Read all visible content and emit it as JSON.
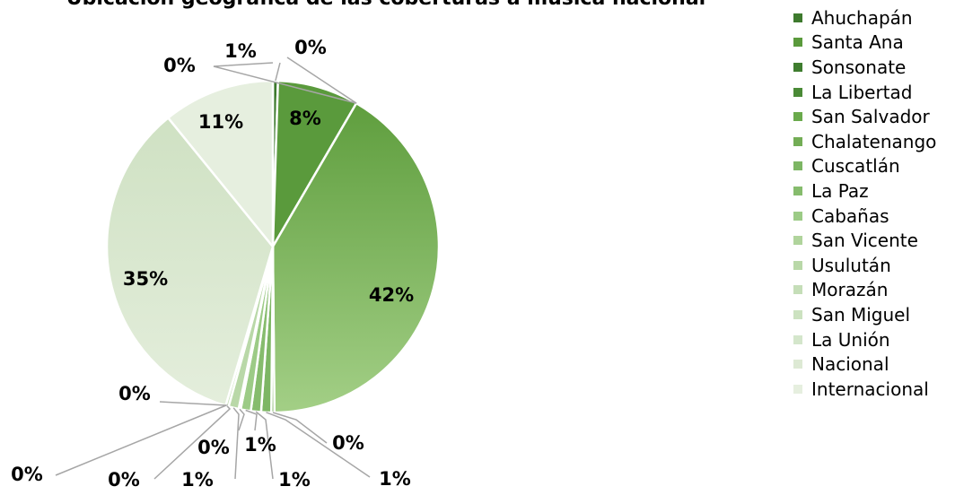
{
  "chart_data": {
    "type": "pie",
    "title": "Ubicación geográfica de las coberturas a música nacional",
    "categories": [
      "Ahuchapán",
      "Santa Ana",
      "Sonsonate",
      "La Libertad",
      "San Salvador",
      "Chalatenango",
      "Cuscatlán",
      "La Paz",
      "Cabañas",
      "San Vicente",
      "Usulután",
      "Morazán",
      "San Miguel",
      "La Unión",
      "Nacional",
      "Internacional"
    ],
    "values": [
      0.5,
      8,
      0,
      0,
      42,
      0.3,
      1,
      1,
      1,
      0.2,
      1,
      0.3,
      0,
      0,
      35,
      11
    ],
    "data_labels": [
      "1%",
      "8%",
      "0%",
      "0%",
      "42%",
      "0%",
      "1%",
      "1%",
      "1%",
      "0%",
      "1%",
      "0%",
      "0%",
      "0%",
      "35%",
      "11%"
    ],
    "colors": [
      "#3e7a2e",
      "#5a9a3c",
      "#3f7d2f",
      "#4a8a36",
      "#6aaa4c",
      "#73ad55",
      "#7db664",
      "#86bc6d",
      "#9ccb86",
      "#b0d49c",
      "#b9d8a8",
      "#c5deb8",
      "#cce2c0",
      "#d4e6cb",
      "#dde9d4",
      "#e6efdf"
    ],
    "legend_position": "right"
  }
}
